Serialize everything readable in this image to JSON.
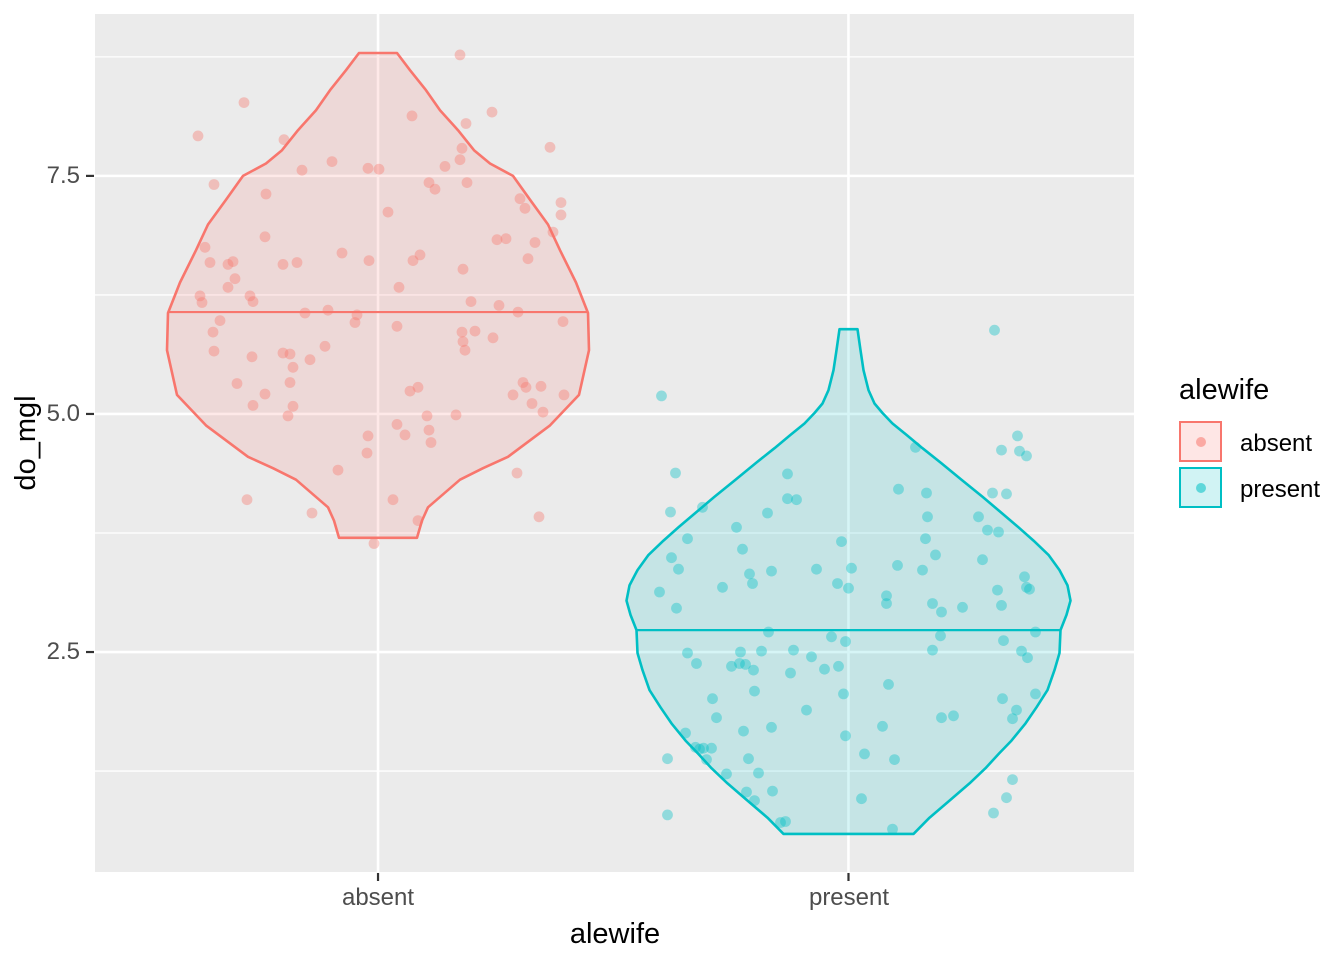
{
  "chart_data": {
    "type": "violin",
    "subtype": "violin-with-jittered-points",
    "title": "",
    "xlabel": "alewife",
    "ylabel": "do_mgl",
    "categories": [
      "absent",
      "present"
    ],
    "y_tick_labels": [
      "7.5",
      "5.0",
      "2.5"
    ],
    "y_ticks": [
      7.5,
      5.0,
      2.5
    ],
    "y_minor_ticks": [
      8.75,
      6.25,
      3.75,
      1.25
    ],
    "y_domain": [
      0.19,
      9.2
    ],
    "grid": "on",
    "legend_position": "right",
    "panel_bg": "#EBEBEB",
    "grid_color": "#FFFFFF",
    "tick_color": "#333333",
    "center_fracs": [
      0.2724,
      0.7252
    ],
    "series": [
      {
        "name": "absent",
        "color": "#F8766D",
        "median": 6.07,
        "median_halfwidth": 210,
        "range": [
          3.7,
          8.79
        ],
        "violin_profile": [
          [
            8.79,
            19
          ],
          [
            8.61,
            32
          ],
          [
            8.4,
            48
          ],
          [
            8.19,
            62
          ],
          [
            7.98,
            80
          ],
          [
            7.77,
            96
          ],
          [
            7.63,
            112
          ],
          [
            7.5,
            135
          ],
          [
            7.25,
            152
          ],
          [
            6.99,
            170
          ],
          [
            6.72,
            182
          ],
          [
            6.38,
            198
          ],
          [
            6.06,
            210
          ],
          [
            5.67,
            211
          ],
          [
            5.2,
            201
          ],
          [
            4.88,
            172
          ],
          [
            4.55,
            130
          ],
          [
            4.43,
            105
          ],
          [
            4.31,
            82
          ],
          [
            4.02,
            50
          ],
          [
            3.88,
            44
          ],
          [
            3.7,
            39
          ]
        ],
        "points": [
          [
            82,
            8.77
          ],
          [
            -134,
            8.27
          ],
          [
            -180,
            7.92
          ],
          [
            114,
            8.17
          ],
          [
            88,
            8.05
          ],
          [
            34,
            8.13
          ],
          [
            172,
            7.8
          ],
          [
            -94,
            7.88
          ],
          [
            -46,
            7.65
          ],
          [
            183,
            7.22
          ],
          [
            183,
            7.09
          ],
          [
            -10,
            7.58
          ],
          [
            1,
            7.57
          ],
          [
            84,
            7.79
          ],
          [
            82,
            7.67
          ],
          [
            67,
            7.6
          ],
          [
            -76,
            7.56
          ],
          [
            -164,
            7.41
          ],
          [
            51,
            7.43
          ],
          [
            57,
            7.36
          ],
          [
            89,
            7.43
          ],
          [
            -112,
            7.31
          ],
          [
            142,
            7.26
          ],
          [
            147,
            7.16
          ],
          [
            10,
            7.12
          ],
          [
            175,
            6.91
          ],
          [
            -113,
            6.86
          ],
          [
            119,
            6.83
          ],
          [
            128,
            6.84
          ],
          [
            157,
            6.8
          ],
          [
            -36,
            6.69
          ],
          [
            -9,
            6.61
          ],
          [
            35,
            6.61
          ],
          [
            42,
            6.67
          ],
          [
            -95,
            6.57
          ],
          [
            -81,
            6.59
          ],
          [
            150,
            6.63
          ],
          [
            -173,
            6.75
          ],
          [
            -168,
            6.59
          ],
          [
            -150,
            6.57
          ],
          [
            -145,
            6.6
          ],
          [
            85,
            6.52
          ],
          [
            -143,
            6.42
          ],
          [
            -150,
            6.33
          ],
          [
            -178,
            6.24
          ],
          [
            -128,
            6.24
          ],
          [
            21,
            6.33
          ],
          [
            -176,
            6.17
          ],
          [
            -125,
            6.18
          ],
          [
            -73,
            6.06
          ],
          [
            -50,
            6.09
          ],
          [
            -21,
            6.04
          ],
          [
            -23,
            5.96
          ],
          [
            19,
            5.92
          ],
          [
            -158,
            5.98
          ],
          [
            -165,
            5.86
          ],
          [
            -164,
            5.66
          ],
          [
            -126,
            5.6
          ],
          [
            -141,
            5.32
          ],
          [
            -113,
            5.21
          ],
          [
            -125,
            5.09
          ],
          [
            -95,
            5.64
          ],
          [
            -88,
            5.63
          ],
          [
            -85,
            5.49
          ],
          [
            -88,
            5.33
          ],
          [
            -85,
            5.08
          ],
          [
            -90,
            4.98
          ],
          [
            -68,
            5.57
          ],
          [
            -53,
            5.71
          ],
          [
            -40,
            4.41
          ],
          [
            -10,
            4.77
          ],
          [
            -11,
            4.59
          ],
          [
            -4,
            3.64
          ],
          [
            19,
            4.89
          ],
          [
            27,
            4.78
          ],
          [
            32,
            5.24
          ],
          [
            40,
            5.28
          ],
          [
            49,
            4.98
          ],
          [
            51,
            4.83
          ],
          [
            53,
            4.7
          ],
          [
            15,
            4.1
          ],
          [
            40,
            3.88
          ],
          [
            78,
            4.99
          ],
          [
            84,
            5.86
          ],
          [
            85,
            5.76
          ],
          [
            87,
            5.67
          ],
          [
            97,
            5.87
          ],
          [
            115,
            5.8
          ],
          [
            93,
            6.18
          ],
          [
            121,
            6.14
          ],
          [
            140,
            6.07
          ],
          [
            145,
            5.33
          ],
          [
            148,
            5.28
          ],
          [
            135,
            5.2
          ],
          [
            154,
            5.11
          ],
          [
            163,
            5.29
          ],
          [
            165,
            5.02
          ],
          [
            185,
            5.97
          ],
          [
            186,
            5.2
          ],
          [
            139,
            4.38
          ],
          [
            161,
            3.92
          ],
          [
            -131,
            4.1
          ],
          [
            -66,
            3.96
          ]
        ]
      },
      {
        "name": "present",
        "color": "#00BFC4",
        "median": 2.73,
        "median_halfwidth": 212,
        "range": [
          0.59,
          5.89
        ],
        "violin_profile": [
          [
            5.89,
            9
          ],
          [
            5.67,
            12
          ],
          [
            5.46,
            15
          ],
          [
            5.25,
            20
          ],
          [
            5.11,
            26
          ],
          [
            5.01,
            34
          ],
          [
            4.9,
            44
          ],
          [
            4.78,
            58
          ],
          [
            4.64,
            74
          ],
          [
            4.49,
            92
          ],
          [
            4.31,
            113
          ],
          [
            4.13,
            134
          ],
          [
            3.97,
            152
          ],
          [
            3.81,
            170
          ],
          [
            3.67,
            185
          ],
          [
            3.52,
            200
          ],
          [
            3.36,
            211
          ],
          [
            3.2,
            219
          ],
          [
            3.04,
            222
          ],
          [
            2.89,
            218
          ],
          [
            2.73,
            212
          ],
          [
            2.49,
            211
          ],
          [
            2.31,
            206
          ],
          [
            2.1,
            199
          ],
          [
            1.92,
            188
          ],
          [
            1.75,
            177
          ],
          [
            1.57,
            163
          ],
          [
            1.44,
            151
          ],
          [
            1.28,
            137
          ],
          [
            1.12,
            121
          ],
          [
            0.94,
            101
          ],
          [
            0.76,
            81
          ],
          [
            0.59,
            65
          ]
        ],
        "points": [
          [
            146,
            5.88
          ],
          [
            -187,
            5.19
          ],
          [
            169,
            4.77
          ],
          [
            153,
            4.62
          ],
          [
            171,
            4.61
          ],
          [
            178,
            4.56
          ],
          [
            67,
            4.65
          ],
          [
            -173,
            4.38
          ],
          [
            -61,
            4.37
          ],
          [
            50,
            4.21
          ],
          [
            144,
            4.17
          ],
          [
            158,
            4.16
          ],
          [
            78,
            4.17
          ],
          [
            -61,
            4.11
          ],
          [
            -52,
            4.1
          ],
          [
            -178,
            3.97
          ],
          [
            -146,
            4.02
          ],
          [
            -81,
            3.96
          ],
          [
            79,
            3.92
          ],
          [
            130,
            3.92
          ],
          [
            -112,
            3.81
          ],
          [
            139,
            3.78
          ],
          [
            150,
            3.76
          ],
          [
            -161,
            3.69
          ],
          [
            -106,
            3.58
          ],
          [
            -7,
            3.66
          ],
          [
            77,
            3.69
          ],
          [
            -177,
            3.49
          ],
          [
            87,
            3.52
          ],
          [
            -170,
            3.37
          ],
          [
            -32,
            3.37
          ],
          [
            3,
            3.38
          ],
          [
            49,
            3.41
          ],
          [
            134,
            3.47
          ],
          [
            74,
            3.36
          ],
          [
            -77,
            3.35
          ],
          [
            -99,
            3.32
          ],
          [
            -96,
            3.22
          ],
          [
            -126,
            3.18
          ],
          [
            -189,
            3.13
          ],
          [
            -11,
            3.22
          ],
          [
            0,
            3.17
          ],
          [
            38,
            3.09
          ],
          [
            176,
            3.29
          ],
          [
            178,
            3.18
          ],
          [
            181,
            3.16
          ],
          [
            149,
            3.15
          ],
          [
            -172,
            2.96
          ],
          [
            38,
            3.01
          ],
          [
            84,
            3.01
          ],
          [
            93,
            2.92
          ],
          [
            114,
            2.97
          ],
          [
            153,
            2.99
          ],
          [
            -80,
            2.71
          ],
          [
            -17,
            2.66
          ],
          [
            -3,
            2.61
          ],
          [
            92,
            2.67
          ],
          [
            155,
            2.62
          ],
          [
            187,
            2.71
          ],
          [
            -161,
            2.49
          ],
          [
            -152,
            2.38
          ],
          [
            -108,
            2.5
          ],
          [
            -87,
            2.51
          ],
          [
            -55,
            2.52
          ],
          [
            -37,
            2.45
          ],
          [
            84,
            2.52
          ],
          [
            173,
            2.51
          ],
          [
            179,
            2.44
          ],
          [
            -117,
            2.35
          ],
          [
            -109,
            2.38
          ],
          [
            -103,
            2.37
          ],
          [
            -95,
            2.31
          ],
          [
            -58,
            2.28
          ],
          [
            -24,
            2.32
          ],
          [
            -10,
            2.35
          ],
          [
            40,
            2.16
          ],
          [
            -94,
            2.09
          ],
          [
            -5,
            2.06
          ],
          [
            -136,
            2.01
          ],
          [
            -42,
            1.89
          ],
          [
            -132,
            1.81
          ],
          [
            154,
            2.01
          ],
          [
            93,
            1.81
          ],
          [
            105,
            1.83
          ],
          [
            34,
            1.72
          ],
          [
            168,
            1.89
          ],
          [
            164,
            1.8
          ],
          [
            187,
            2.06
          ],
          [
            -105,
            1.67
          ],
          [
            -77,
            1.71
          ],
          [
            -163,
            1.65
          ],
          [
            -3,
            1.62
          ],
          [
            -153,
            1.5
          ],
          [
            -149,
            1.48
          ],
          [
            -145,
            1.49
          ],
          [
            -137,
            1.49
          ],
          [
            -142,
            1.37
          ],
          [
            -181,
            1.38
          ],
          [
            -100,
            1.38
          ],
          [
            16,
            1.43
          ],
          [
            46,
            1.37
          ],
          [
            -122,
            1.22
          ],
          [
            -90,
            1.23
          ],
          [
            164,
            1.16
          ],
          [
            -102,
            1.03
          ],
          [
            -76,
            1.04
          ],
          [
            -94,
            0.94
          ],
          [
            158,
            0.97
          ],
          [
            13,
            0.96
          ],
          [
            145,
            0.81
          ],
          [
            -181,
            0.79
          ],
          [
            -68,
            0.71
          ],
          [
            -63,
            0.72
          ],
          [
            44,
            0.64
          ]
        ]
      }
    ]
  },
  "legend": {
    "title": "alewife",
    "entries": [
      {
        "label": "absent",
        "color": "#F8766D"
      },
      {
        "label": "present",
        "color": "#00BFC4"
      }
    ]
  }
}
